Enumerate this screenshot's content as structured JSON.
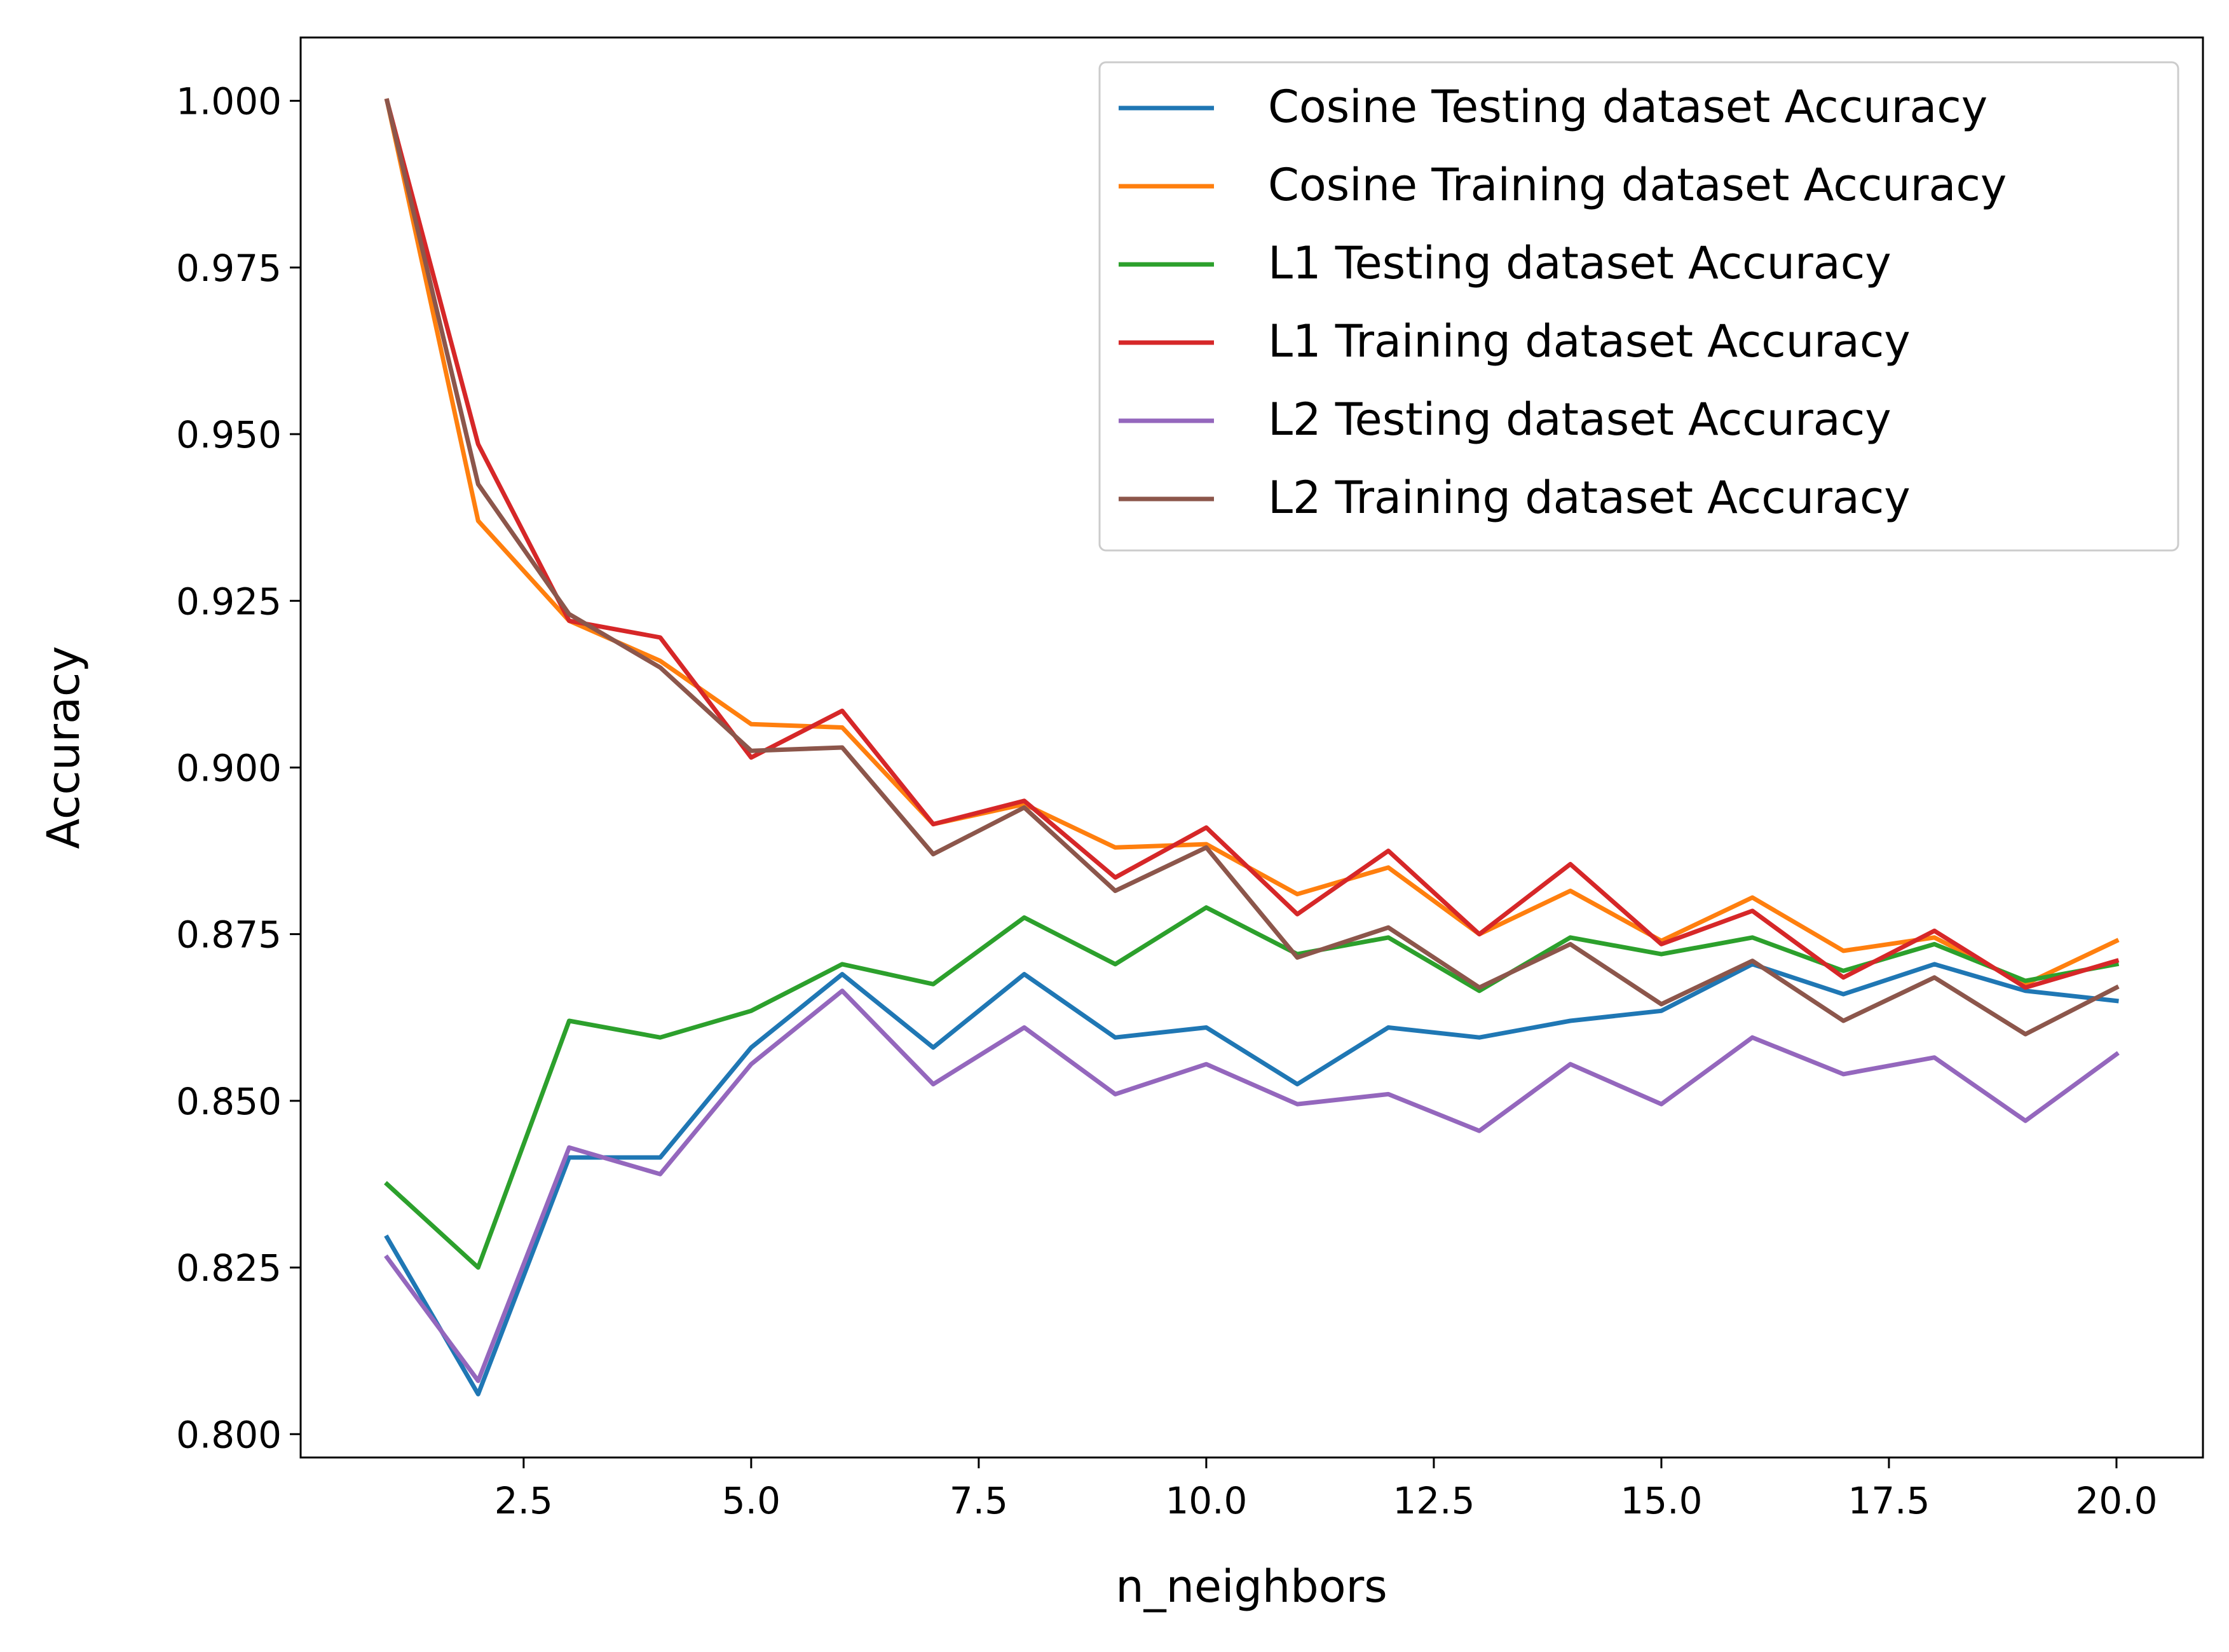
{
  "chart_data": {
    "type": "line",
    "xlabel": "n_neighbors",
    "ylabel": "Accuracy",
    "xlim": [
      0.05,
      20.95
    ],
    "ylim": [
      0.7965,
      1.0095
    ],
    "xticks": [
      2.5,
      5.0,
      7.5,
      10.0,
      12.5,
      15.0,
      17.5,
      20.0
    ],
    "xtick_labels": [
      "2.5",
      "5.0",
      "7.5",
      "10.0",
      "12.5",
      "15.0",
      "17.5",
      "20.0"
    ],
    "yticks": [
      0.8,
      0.825,
      0.85,
      0.875,
      0.9,
      0.925,
      0.95,
      0.975,
      1.0
    ],
    "ytick_labels": [
      "0.800",
      "0.825",
      "0.850",
      "0.875",
      "0.900",
      "0.925",
      "0.950",
      "0.975",
      "1.000"
    ],
    "grid": false,
    "legend_position": "top-right",
    "x": [
      1,
      2,
      3,
      4,
      5,
      6,
      7,
      8,
      9,
      10,
      11,
      12,
      13,
      14,
      15,
      16,
      17,
      18,
      19,
      20
    ],
    "series": [
      {
        "name": "Cosine Testing dataset Accuracy",
        "color": "#1f77b4",
        "values": [
          0.8295,
          0.806,
          0.8415,
          0.8415,
          0.858,
          0.869,
          0.858,
          0.869,
          0.8595,
          0.861,
          0.8525,
          0.861,
          0.8595,
          0.862,
          0.8635,
          0.8705,
          0.866,
          0.8705,
          0.8665,
          0.865
        ]
      },
      {
        "name": "Cosine Training dataset Accuracy",
        "color": "#ff7f0e",
        "values": [
          1.0,
          0.937,
          0.922,
          0.916,
          0.9065,
          0.906,
          0.8915,
          0.8945,
          0.888,
          0.8885,
          0.881,
          0.885,
          0.875,
          0.8815,
          0.874,
          0.8805,
          0.8725,
          0.8745,
          0.8675,
          0.874
        ]
      },
      {
        "name": "L1 Testing dataset Accuracy",
        "color": "#2ca02c",
        "values": [
          0.8375,
          0.825,
          0.862,
          0.8595,
          0.8635,
          0.8705,
          0.8675,
          0.8775,
          0.8705,
          0.879,
          0.872,
          0.8745,
          0.8665,
          0.8745,
          0.872,
          0.8745,
          0.8695,
          0.8735,
          0.868,
          0.8705
        ]
      },
      {
        "name": "L1 Training dataset Accuracy",
        "color": "#d62728",
        "values": [
          1.0,
          0.9485,
          0.922,
          0.9195,
          0.9015,
          0.9085,
          0.8915,
          0.895,
          0.8835,
          0.891,
          0.878,
          0.8875,
          0.875,
          0.8855,
          0.8735,
          0.8785,
          0.8685,
          0.8755,
          0.867,
          0.871
        ]
      },
      {
        "name": "L2 Testing dataset Accuracy",
        "color": "#9467bd",
        "values": [
          0.8265,
          0.808,
          0.843,
          0.839,
          0.8555,
          0.8665,
          0.8525,
          0.861,
          0.851,
          0.8555,
          0.8495,
          0.851,
          0.8455,
          0.8555,
          0.8495,
          0.8595,
          0.854,
          0.8565,
          0.847,
          0.857
        ]
      },
      {
        "name": "L2 Training dataset Accuracy",
        "color": "#8c564b",
        "values": [
          1.0,
          0.9425,
          0.923,
          0.915,
          0.9025,
          0.903,
          0.887,
          0.894,
          0.8815,
          0.888,
          0.8715,
          0.876,
          0.867,
          0.8735,
          0.8645,
          0.871,
          0.862,
          0.8685,
          0.86,
          0.867
        ]
      }
    ]
  }
}
